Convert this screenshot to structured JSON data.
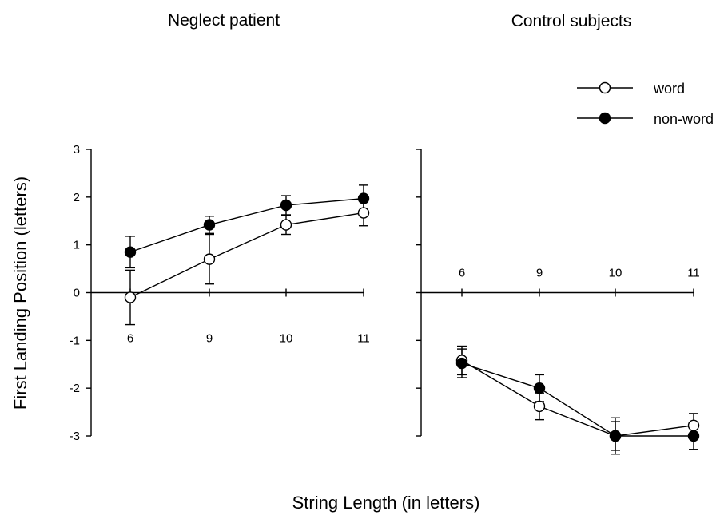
{
  "figure": {
    "ylabel": "First Landing Position (letters)",
    "xlabel": "String Length (in letters)",
    "legend": {
      "placement": "top-right",
      "items": [
        "word",
        "non-word"
      ]
    },
    "colors": {
      "axis": "#000000",
      "word_fill": "#ffffff",
      "nonword_fill": "#000000"
    }
  },
  "chart_data": [
    {
      "type": "line",
      "title": "Neglect patient",
      "categories": [
        "6",
        "9",
        "10",
        "11"
      ],
      "yticks": [
        "-3",
        "-2",
        "-1",
        "0",
        "1",
        "2",
        "3"
      ],
      "ylim": [
        -3,
        3
      ],
      "grid": false,
      "series": [
        {
          "name": "word",
          "marker": "open-circle",
          "values": [
            -0.1,
            0.7,
            1.42,
            1.67
          ],
          "error": [
            0.57,
            0.52,
            0.2,
            0.27
          ]
        },
        {
          "name": "non-word",
          "marker": "filled-circle",
          "values": [
            0.85,
            1.42,
            1.83,
            1.97
          ],
          "error": [
            0.33,
            0.18,
            0.2,
            0.28
          ]
        }
      ]
    },
    {
      "type": "line",
      "title": "Control subjects",
      "categories": [
        "6",
        "9",
        "10",
        "11"
      ],
      "ylim": [
        -3,
        3
      ],
      "grid": false,
      "series": [
        {
          "name": "word",
          "marker": "open-circle",
          "values": [
            -1.42,
            -2.38,
            -3.0,
            -2.78
          ],
          "error": [
            0.3,
            0.28,
            0.38,
            0.25
          ]
        },
        {
          "name": "non-word",
          "marker": "filled-circle",
          "values": [
            -1.48,
            -2.0,
            -3.0,
            -3.0
          ],
          "error": [
            0.3,
            0.28,
            0.3,
            0.28
          ]
        }
      ]
    }
  ]
}
